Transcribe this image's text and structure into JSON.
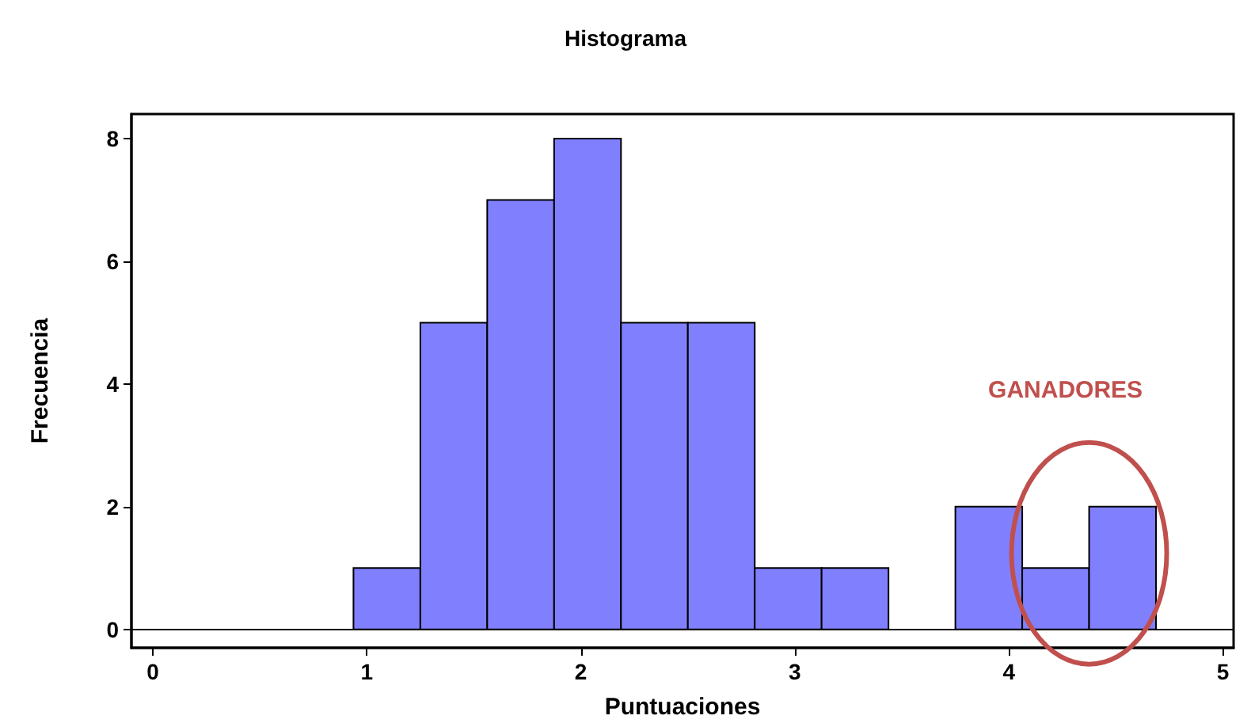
{
  "chart_data": {
    "type": "histogram",
    "title": "Histograma",
    "xlabel": "Puntuaciones",
    "ylabel": "Frecuencia",
    "bins": [
      0.9375,
      1.25,
      1.5625,
      1.875,
      2.1875,
      2.5,
      2.8125,
      3.125,
      3.4375,
      3.75,
      4.0625,
      4.375,
      4.6875
    ],
    "values": [
      1,
      5,
      7,
      8,
      5,
      5,
      1,
      1,
      0,
      2,
      1,
      2
    ],
    "color": "#8080ff",
    "xlim": [
      -0.1,
      5.05
    ],
    "xticks": [
      0,
      1,
      2,
      3,
      4,
      5
    ],
    "ylim": [
      -0.3,
      8.4
    ],
    "yticks": [
      0,
      2,
      4,
      6,
      8
    ],
    "grid": false,
    "ref_lines": [
      {
        "axis": "y",
        "value": 0,
        "color": "#000000"
      }
    ],
    "annotations": [
      "GANADORES"
    ]
  }
}
